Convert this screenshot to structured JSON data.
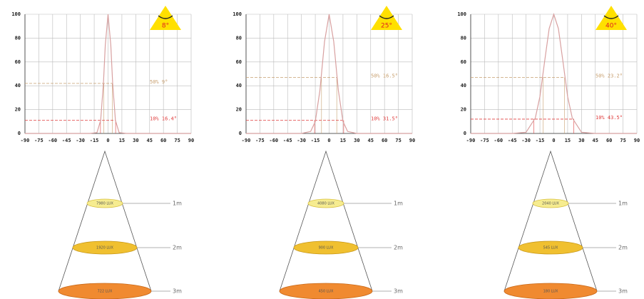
{
  "chart_data": [
    {
      "type": "line",
      "badge": "8°",
      "x": [
        -90,
        -20,
        -12,
        -8,
        -5,
        -3,
        0,
        3,
        5,
        8,
        12,
        20,
        90
      ],
      "values": [
        0,
        0,
        0.7,
        11,
        42,
        74,
        100,
        74,
        42,
        11,
        0.7,
        0,
        0
      ],
      "color": "#d8a0a0",
      "xlim": [
        -90,
        90
      ],
      "ylim": [
        0,
        100
      ],
      "xticks": [
        -90,
        -75,
        -60,
        -45,
        -30,
        -15,
        0,
        15,
        30,
        45,
        60,
        75,
        90
      ],
      "yticks": [
        0,
        20,
        40,
        60,
        80,
        100
      ],
      "grid": true,
      "ref_lines": [
        {
          "y": 42,
          "x": 4.5,
          "label": "50% 9°",
          "color": "#c8a070"
        },
        {
          "y": 11,
          "x": 8.2,
          "label": "10% 16.4°",
          "color": "#e04040"
        }
      ],
      "cone": [
        {
          "lux": "7980 LUX",
          "distance": "1m"
        },
        {
          "lux": "1920 LUX",
          "distance": "2m"
        },
        {
          "lux": "722 LUX",
          "distance": "3m"
        }
      ]
    },
    {
      "type": "line",
      "badge": "25°",
      "x": [
        -90,
        -30,
        -20,
        -15,
        -10,
        -5,
        0,
        5,
        10,
        15,
        20,
        30,
        90
      ],
      "values": [
        0,
        0,
        1.7,
        10,
        36,
        77,
        100,
        77,
        36,
        10,
        1.7,
        0,
        0
      ],
      "color": "#d8a0a0",
      "xlim": [
        -90,
        90
      ],
      "ylim": [
        0,
        100
      ],
      "xticks": [
        -90,
        -75,
        -60,
        -45,
        -30,
        -15,
        0,
        15,
        30,
        45,
        60,
        75,
        90
      ],
      "yticks": [
        0,
        20,
        40,
        60,
        80,
        100
      ],
      "grid": true,
      "ref_lines": [
        {
          "y": 47,
          "x": 8.25,
          "label": "50% 16.5°",
          "color": "#c8a070"
        },
        {
          "y": 11,
          "x": 15.75,
          "label": "10% 31.5°",
          "color": "#e04040"
        }
      ],
      "cone": [
        {
          "lux": "4080 LUX",
          "distance": "1m"
        },
        {
          "lux": "900 LUX",
          "distance": "2m"
        },
        {
          "lux": "450 LUX",
          "distance": "3m"
        }
      ]
    },
    {
      "type": "line",
      "badge": "40°",
      "x": [
        -90,
        -45,
        -30,
        -20,
        -15,
        -10,
        -5,
        0,
        5,
        10,
        15,
        20,
        30,
        45,
        90
      ],
      "values": [
        0,
        0,
        1,
        13,
        31,
        60,
        88,
        100,
        88,
        60,
        31,
        13,
        1,
        0,
        0
      ],
      "color": "#d8a0a0",
      "xlim": [
        -90,
        90
      ],
      "ylim": [
        0,
        100
      ],
      "xticks": [
        -90,
        -75,
        -60,
        -45,
        -30,
        -15,
        0,
        15,
        30,
        45,
        60,
        75,
        90
      ],
      "yticks": [
        0,
        20,
        40,
        60,
        80,
        100
      ],
      "grid": true,
      "ref_lines": [
        {
          "y": 47,
          "x": 11.6,
          "label": "50% 23.2°",
          "color": "#c8a070"
        },
        {
          "y": 12,
          "x": 21.75,
          "label": "10% 43.5°",
          "color": "#e04040"
        }
      ],
      "cone": [
        {
          "lux": "2040 LUX",
          "distance": "1m"
        },
        {
          "lux": "545 LUX",
          "distance": "2m"
        },
        {
          "lux": "180 LUX",
          "distance": "3m"
        }
      ]
    }
  ]
}
